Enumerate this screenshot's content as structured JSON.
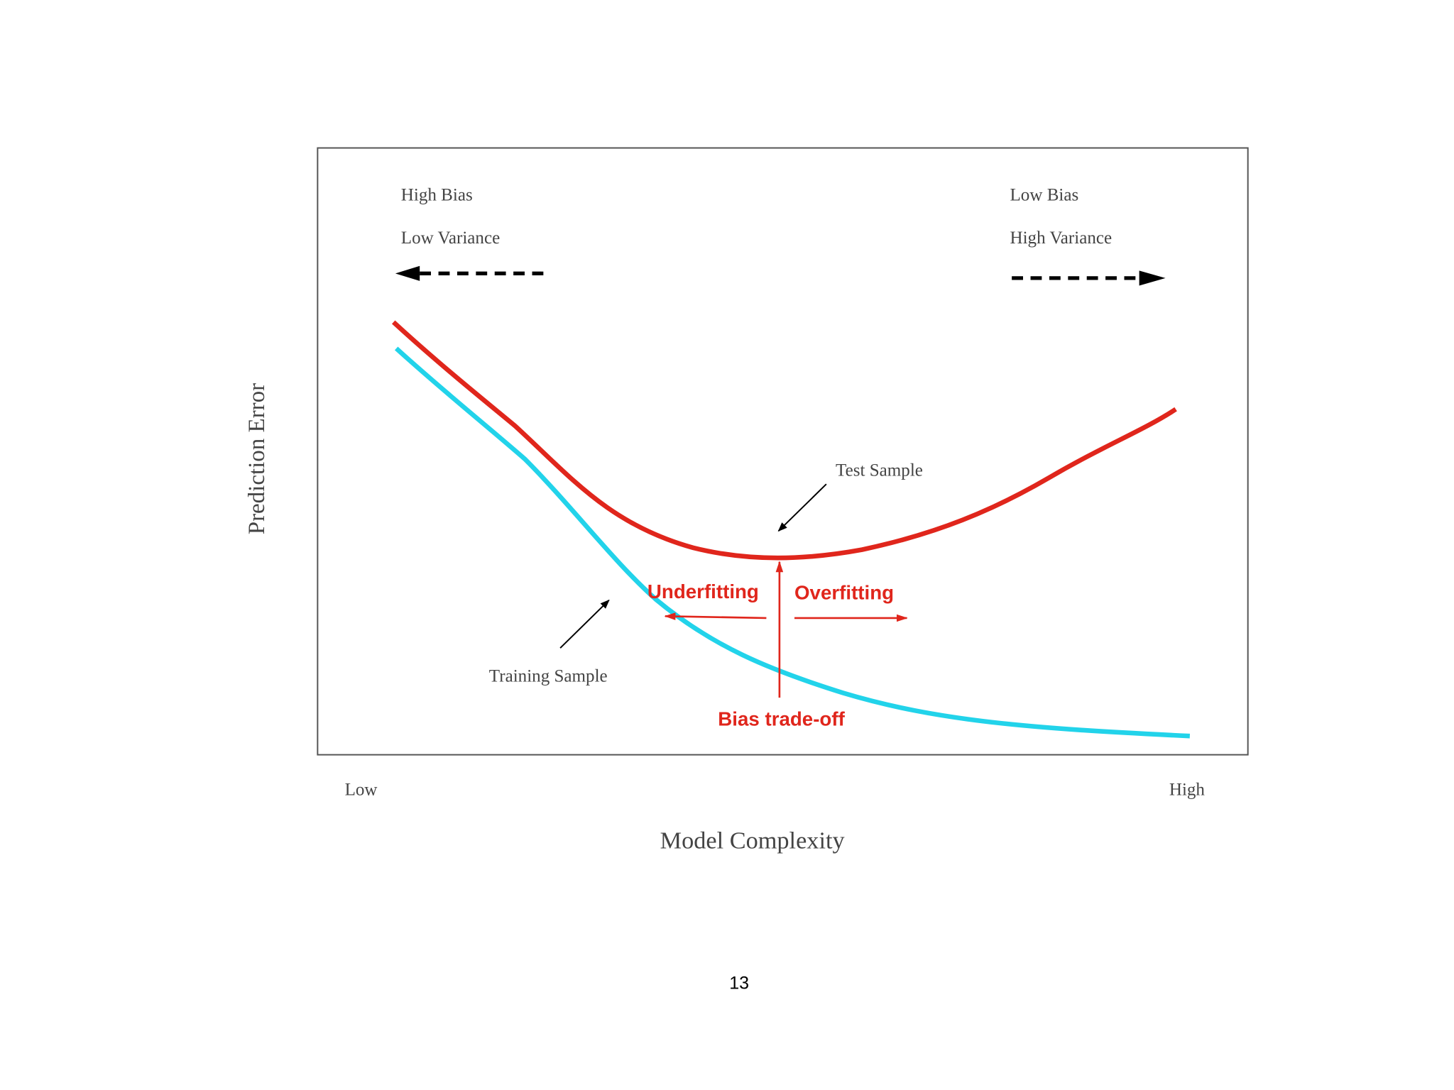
{
  "diagram": {
    "y_axis": {
      "label": "Prediction Error"
    },
    "x_axis": {
      "label": "Model Complexity",
      "low": "Low",
      "high": "High"
    },
    "left_region": {
      "bias": "High Bias",
      "variance": "Low Variance"
    },
    "right_region": {
      "bias": "Low Bias",
      "variance": "High Variance"
    },
    "curves": {
      "test": "Test Sample",
      "training": "Training Sample"
    },
    "annotations": {
      "underfitting": "Underfitting",
      "overfitting": "Overfitting",
      "tradeoff": "Bias trade-off"
    }
  },
  "footer": {
    "page_number": "13"
  }
}
